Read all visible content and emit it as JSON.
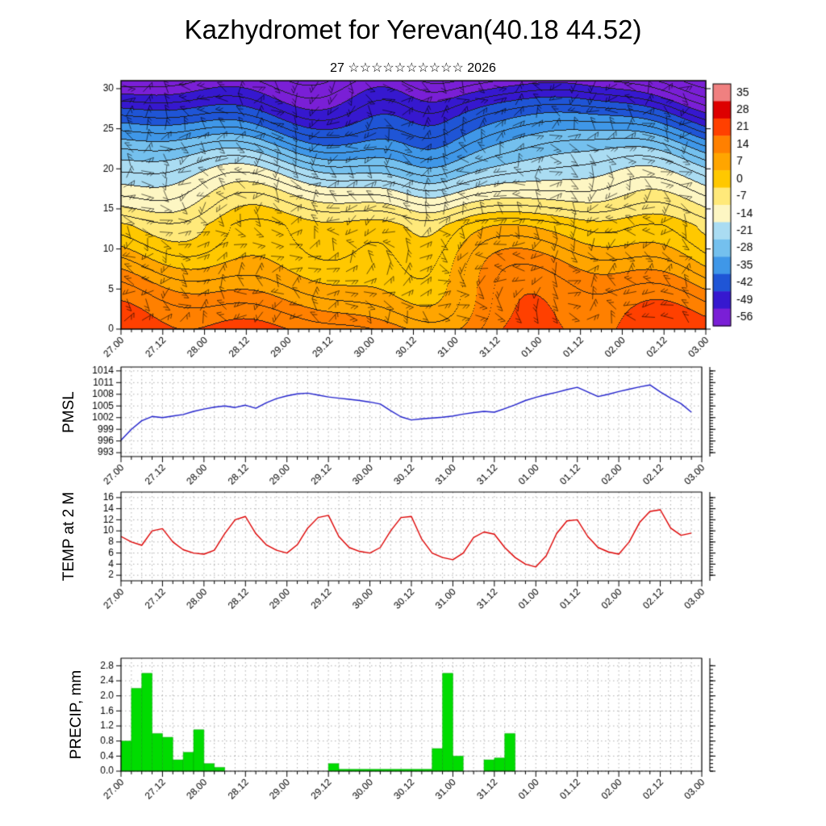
{
  "title": "Kazhydromet for Yerevan(40.18 44.52)",
  "subtitle": "27 ☆☆☆☆☆☆☆☆☆☆ 2026",
  "x_axis": {
    "tick_labels": [
      "27.00",
      "27.12",
      "28.00",
      "28.12",
      "29.00",
      "29.12",
      "30.00",
      "30.12",
      "31.00",
      "31.12",
      "01.00",
      "01.12",
      "02.00",
      "02.12",
      "03.00"
    ],
    "total_hours": 168,
    "major_step_hours": 12,
    "minor_step_hours": 3
  },
  "colorbar": {
    "tick_labels": [
      "35",
      "28",
      "21",
      "14",
      "7",
      "0",
      "-7",
      "-14",
      "-21",
      "-28",
      "-35",
      "-42",
      "-49",
      "-56"
    ],
    "colors_warm_to_cold": [
      "#f08080",
      "#dd0000",
      "#ff4000",
      "#ff8000",
      "#ffa500",
      "#ffc800",
      "#ffe97a",
      "#fdf6c3",
      "#aadcf2",
      "#74c0ee",
      "#3f97e8",
      "#1f55d6",
      "#3618cf",
      "#7a1fd6"
    ]
  },
  "chart_data": [
    {
      "type": "heatmap",
      "name": "temperature-height-cross-section",
      "ylim": [
        0,
        31
      ],
      "y_ticks": [
        0,
        5,
        10,
        15,
        20,
        25,
        30
      ],
      "y_tick_labels": [
        "0",
        "5",
        "10",
        "15",
        "20",
        "25",
        "30"
      ],
      "levels_celsius": [
        35,
        28,
        21,
        14,
        7,
        0,
        -7,
        -14,
        -21,
        -28,
        -35,
        -42,
        -49,
        -56
      ],
      "overlay": "wind-barbs"
    },
    {
      "type": "line",
      "name": "pmsl",
      "ylabel": "PMSL",
      "color": "#2222cc",
      "ylim": [
        992,
        1015
      ],
      "y_ticks": [
        993,
        996,
        999,
        1002,
        1005,
        1008,
        1011,
        1014
      ],
      "y_tick_labels": [
        "993",
        "996",
        "999",
        "1002",
        "1005",
        "1008",
        "1011",
        "1014"
      ],
      "x_start_hour": 0,
      "x_step_hours": 3,
      "values": [
        996.2,
        999.0,
        1001.2,
        1002.3,
        1002.0,
        1002.4,
        1002.8,
        1003.6,
        1004.2,
        1004.7,
        1005.0,
        1004.6,
        1005.2,
        1004.4,
        1005.8,
        1006.9,
        1007.6,
        1008.1,
        1008.3,
        1007.8,
        1007.3,
        1007.0,
        1006.7,
        1006.4,
        1006.0,
        1005.5,
        1003.8,
        1002.2,
        1001.4,
        1001.7,
        1001.9,
        1002.1,
        1002.4,
        1002.9,
        1003.3,
        1003.6,
        1003.4,
        1004.3,
        1005.3,
        1006.4,
        1007.2,
        1007.9,
        1008.5,
        1009.2,
        1009.8,
        1008.6,
        1007.4,
        1008.0,
        1008.7,
        1009.3,
        1009.9,
        1010.4,
        1008.6,
        1007.0,
        1005.6,
        1003.4
      ]
    },
    {
      "type": "line",
      "name": "temp-2m",
      "ylabel": "TEMP at 2 M",
      "color": "#dd0000",
      "ylim": [
        1,
        17
      ],
      "y_ticks": [
        2,
        4,
        6,
        8,
        10,
        12,
        14,
        16
      ],
      "y_tick_labels": [
        "2",
        "4",
        "6",
        "8",
        "10",
        "12",
        "14",
        "16"
      ],
      "x_start_hour": 0,
      "x_step_hours": 3,
      "values": [
        9.0,
        8.0,
        7.4,
        10.0,
        10.4,
        8.0,
        6.6,
        6.0,
        5.8,
        6.5,
        9.5,
        12.0,
        12.6,
        9.5,
        7.5,
        6.5,
        6.0,
        7.5,
        10.5,
        12.4,
        12.8,
        9.0,
        7.0,
        6.3,
        6.0,
        7.0,
        10.0,
        12.4,
        12.6,
        8.5,
        6.0,
        5.2,
        4.8,
        6.0,
        8.8,
        9.8,
        9.4,
        7.0,
        5.2,
        4.0,
        3.5,
        5.5,
        9.5,
        11.8,
        12.0,
        9.0,
        7.0,
        6.2,
        5.8,
        8.0,
        11.5,
        13.5,
        13.8,
        10.5,
        9.2,
        9.6
      ]
    },
    {
      "type": "bar",
      "name": "precip",
      "ylabel": "PRECIP, mm",
      "color": "#00dc00",
      "ylim": [
        0,
        3.0
      ],
      "y_ticks": [
        0.0,
        0.4,
        0.8,
        1.2,
        1.6,
        2.0,
        2.4,
        2.8
      ],
      "y_tick_labels": [
        "0.0",
        "0.4",
        "0.8",
        "1.2",
        "1.6",
        "2.0",
        "2.4",
        "2.8"
      ],
      "x_start_hour": 0,
      "x_step_hours": 3,
      "values": [
        0.8,
        2.2,
        2.6,
        1.0,
        0.9,
        0.3,
        0.5,
        1.1,
        0.2,
        0.1,
        0,
        0,
        0,
        0,
        0,
        0,
        0,
        0,
        0,
        0,
        0.2,
        0.05,
        0.05,
        0.05,
        0.05,
        0.05,
        0.05,
        0.05,
        0.05,
        0.05,
        0.6,
        2.6,
        0.4,
        0,
        0,
        0.3,
        0.35,
        1.0,
        0,
        0,
        0,
        0,
        0,
        0,
        0,
        0,
        0,
        0,
        0,
        0,
        0,
        0,
        0,
        0,
        0,
        0
      ]
    }
  ]
}
